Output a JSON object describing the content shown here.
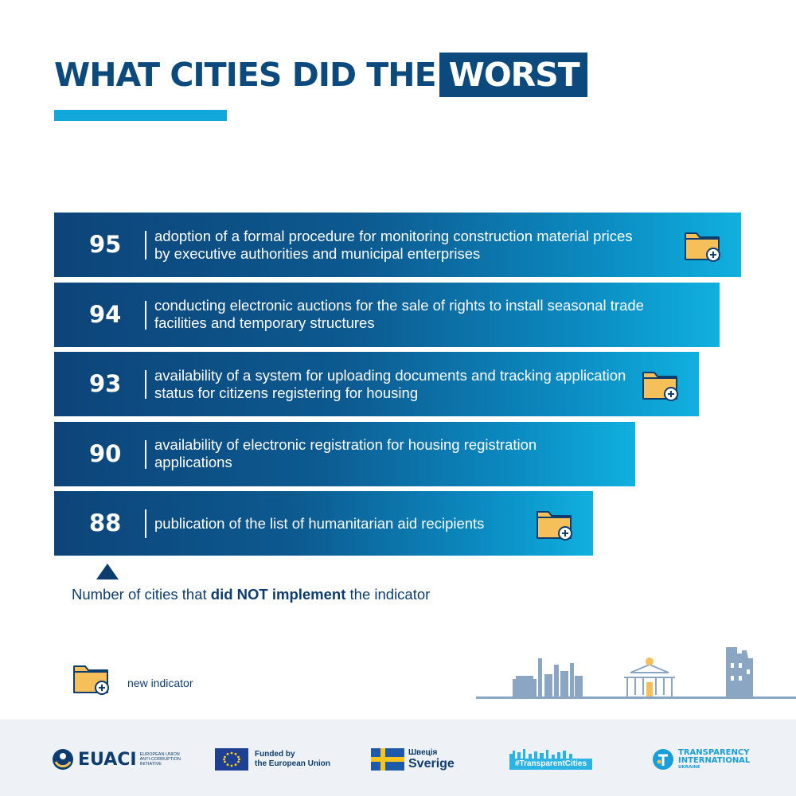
{
  "title": {
    "text": "WHAT CITIES DID THE",
    "highlight": "WORST"
  },
  "chart_data": {
    "type": "bar",
    "orientation": "horizontal",
    "title": "WHAT CITIES DID THE WORST",
    "xlim": [
      0,
      100
    ],
    "bars": [
      {
        "value": 95,
        "label": "adoption of a formal procedure for monitoring construction material prices by executive authorities and municipal enterprises",
        "new_indicator": true
      },
      {
        "value": 94,
        "label": "conducting electronic auctions for the sale of rights to install seasonal trade facilities and temporary structures",
        "new_indicator": false
      },
      {
        "value": 93,
        "label": "availability of a system for uploading documents and tracking application status for citizens registering for housing",
        "new_indicator": true
      },
      {
        "value": 90,
        "label": "availability of electronic registration for housing registration applications",
        "new_indicator": false
      },
      {
        "value": 88,
        "label": "publication of the list of humanitarian aid recipients",
        "new_indicator": true
      }
    ]
  },
  "note": {
    "pre": "Number of cities that ",
    "bold": "did NOT implement",
    "post": " the indicator"
  },
  "legend": {
    "new_indicator": "new indicator"
  },
  "colors": {
    "bar_dark": "#0d4479",
    "bar_light": "#10b0df",
    "accent": "#13a8dc",
    "folder": "#f5c05a"
  },
  "footer": {
    "euaci": {
      "name": "EUACI",
      "sub": "European Union Anti-Corruption Initiative"
    },
    "eu": {
      "line1": "Funded by",
      "line2": "the European Union"
    },
    "sweden": {
      "top": "Швеція",
      "main": "Sverige"
    },
    "transparent_cities": "#TransparentCities",
    "ti": {
      "line1": "TRANSPARENCY",
      "line2": "INTERNATIONAL",
      "line3": "UKRAINE"
    }
  }
}
